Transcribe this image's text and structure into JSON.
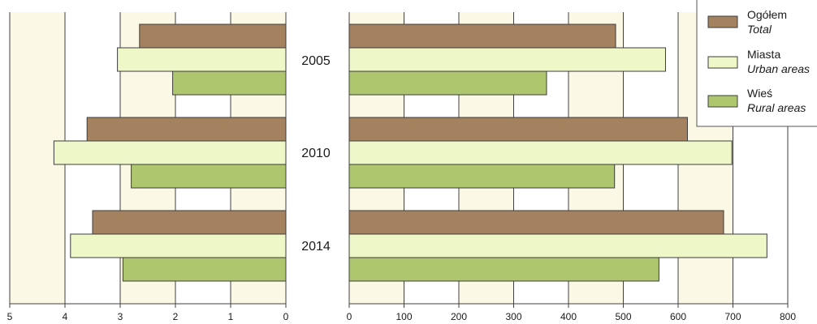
{
  "chart_data": [
    {
      "type": "bar",
      "orientation": "horizontal",
      "reversed_axis": true,
      "categories": [
        "2005",
        "2010",
        "2014"
      ],
      "series": [
        {
          "name": "Ogółem",
          "name_en": "Total",
          "color": "#A5825F",
          "values": [
            2.65,
            3.6,
            3.5
          ]
        },
        {
          "name": "Miasta",
          "name_en": "Urban areas",
          "color": "#EEF7C7",
          "values": [
            3.05,
            4.2,
            3.9
          ]
        },
        {
          "name": "Wieś",
          "name_en": "Rural areas",
          "color": "#AEC76F",
          "values": [
            2.05,
            2.8,
            2.95
          ]
        }
      ],
      "xlim": [
        0,
        5
      ],
      "x_ticks": [
        "5",
        "4",
        "3",
        "2",
        "1",
        "0"
      ],
      "grid": true,
      "title": "",
      "xlabel": "",
      "ylabel": ""
    },
    {
      "type": "bar",
      "orientation": "horizontal",
      "categories": [
        "2005",
        "2010",
        "2014"
      ],
      "series": [
        {
          "name": "Ogółem",
          "name_en": "Total",
          "color": "#A5825F",
          "values": [
            486,
            617,
            683
          ]
        },
        {
          "name": "Miasta",
          "name_en": "Urban areas",
          "color": "#EEF7C7",
          "values": [
            577,
            698,
            762
          ]
        },
        {
          "name": "Wieś",
          "name_en": "Rural areas",
          "color": "#AEC76F",
          "values": [
            360,
            484,
            565
          ]
        }
      ],
      "xlim": [
        0,
        800
      ],
      "x_ticks": [
        "0",
        "100",
        "200",
        "300",
        "400",
        "500",
        "600",
        "700",
        "800"
      ],
      "grid": true,
      "legend_position": "top-right",
      "title": "",
      "xlabel": "",
      "ylabel": ""
    }
  ],
  "legend": {
    "items": [
      {
        "name": "Ogółem",
        "name_en": "Total",
        "color": "#A5825F"
      },
      {
        "name": "Miasta",
        "name_en": "Urban areas",
        "color": "#EEF7C7"
      },
      {
        "name": "Wieś",
        "name_en": "Rural areas",
        "color": "#AEC76F"
      }
    ]
  },
  "colors": {
    "background_dark": "#FBF8E6",
    "background_light": "#FFFFFF",
    "gridline": "#404040",
    "bar_outline": "#3c3c3c"
  }
}
